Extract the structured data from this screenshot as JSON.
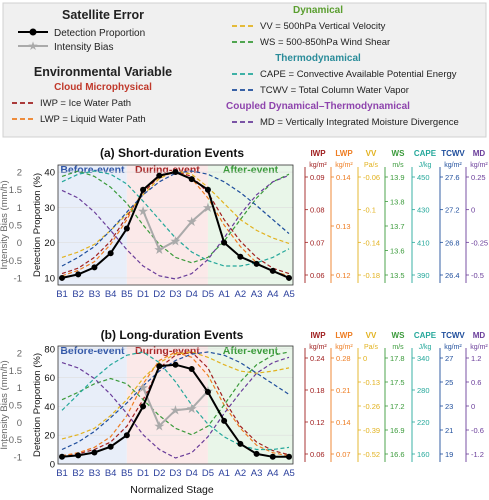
{
  "legend": {
    "satellite_header": "Satellite Error",
    "detection_label": "Detection Proportion",
    "bias_label": "Intensity Bias",
    "env_header": "Environmental Variable",
    "groups": [
      {
        "name": "Cloud Microphysical",
        "color": "#c0392b"
      },
      {
        "name": "Dynamical",
        "color": "#5a9e2f"
      },
      {
        "name": "Thermodynamical",
        "color": "#2a8c9a"
      },
      {
        "name": "Coupled Dynamical–Thermodynamical",
        "color": "#8e44ad"
      }
    ],
    "items": [
      {
        "label": "IWP = Ice Water Path",
        "color": "#a02020"
      },
      {
        "label": "LWP = Liquid Water Path",
        "color": "#ee7d22"
      },
      {
        "label": "VV = 500hPa Vertical Velocity",
        "color": "#e2b21f"
      },
      {
        "label": "WS = 500-850hPa Wind Shear",
        "color": "#3a9a3a"
      },
      {
        "label": "CAPE = Convective Available Potential Energy",
        "color": "#25a89b"
      },
      {
        "label": "TCWV = Total Column Water Vapor",
        "color": "#1f4e9c"
      },
      {
        "label": "MD = Vertically Integrated Moisture Divergence",
        "color": "#6a3d9a"
      }
    ]
  },
  "chart_data": [
    {
      "type": "line",
      "title": "(a) Short-duration Events",
      "xlabel": "",
      "ylabel": "Detection Proportion (%)",
      "y2label": "Intensity Bias (mm/h)",
      "categories": [
        "B1",
        "B2",
        "B3",
        "B4",
        "B5",
        "D1",
        "D2",
        "D3",
        "D4",
        "D5",
        "A1",
        "A2",
        "A3",
        "A4",
        "A5"
      ],
      "phases": [
        {
          "label": "Before-event",
          "from": 0,
          "to": 4,
          "color": "#3358a8",
          "fill": "#e8eef9"
        },
        {
          "label": "During-event",
          "from": 4,
          "to": 9,
          "color": "#a82828",
          "fill": "#fbe9e9"
        },
        {
          "label": "After-event",
          "from": 9,
          "to": 14,
          "color": "#3a9a3a",
          "fill": "#e9f6e9"
        }
      ],
      "ylim": [
        8,
        42
      ],
      "yticks": [
        10,
        20,
        30,
        40
      ],
      "y2lim": [
        -1.2,
        2.2
      ],
      "y2ticks": [
        -1,
        -0.5,
        0,
        0.5,
        1,
        1.5,
        2
      ],
      "detection": [
        10,
        11,
        13,
        17,
        24,
        35,
        39,
        40,
        38,
        35,
        20,
        16,
        14,
        12,
        10
      ],
      "bias_x": [
        "D1",
        "D2",
        "D3",
        "D4",
        "D5"
      ],
      "bias": [
        0.9,
        -0.2,
        0.05,
        0.6,
        1.0
      ],
      "env_axes": [
        {
          "name": "IWP",
          "unit": "kg/m²",
          "color": "#a02020",
          "ticks": [
            "0.09",
            "0.08",
            "0.07",
            "0.06"
          ]
        },
        {
          "name": "LWP",
          "unit": "kg/m²",
          "color": "#ee7d22",
          "ticks": [
            "0.14",
            "0.13",
            "0.12"
          ]
        },
        {
          "name": "VV",
          "unit": "Pa/s",
          "color": "#e2b21f",
          "ticks": [
            "-0.06",
            "-0.1",
            "-0.14",
            "-0.18"
          ]
        },
        {
          "name": "WS",
          "unit": "m/s",
          "color": "#3a9a3a",
          "ticks": [
            "13.9",
            "13.8",
            "13.7",
            "13.6",
            "13.5"
          ]
        },
        {
          "name": "CAPE",
          "unit": "J/kg",
          "color": "#25a89b",
          "ticks": [
            "450",
            "430",
            "410",
            "390"
          ]
        },
        {
          "name": "TCWV",
          "unit": "kg/m²",
          "color": "#1f4e9c",
          "ticks": [
            "27.6",
            "27.2",
            "26.8",
            "26.4"
          ]
        },
        {
          "name": "MD",
          "unit": "kg/m²",
          "color": "#6a3d9a",
          "ticks": [
            "0.25",
            "0",
            "-0.25",
            "-0.5"
          ]
        }
      ],
      "env_series": [
        {
          "name": "IWP",
          "color": "#a02020",
          "values": [
            0.05,
            0.1,
            0.2,
            0.35,
            0.58,
            0.8,
            0.95,
            1.0,
            0.95,
            0.8,
            0.55,
            0.35,
            0.2,
            0.1,
            0.05
          ]
        },
        {
          "name": "LWP",
          "color": "#ee7d22",
          "values": [
            0.03,
            0.08,
            0.16,
            0.32,
            0.55,
            0.82,
            0.95,
            1.0,
            0.93,
            0.75,
            0.5,
            0.3,
            0.15,
            0.07,
            0.03
          ]
        },
        {
          "name": "VV",
          "color": "#e2b21f",
          "values": [
            0.2,
            0.25,
            0.32,
            0.45,
            0.6,
            0.78,
            0.93,
            1.0,
            0.97,
            0.85,
            0.7,
            0.55,
            0.45,
            0.38,
            0.33
          ]
        },
        {
          "name": "WS",
          "color": "#3a9a3a",
          "values": [
            0.95,
            1.0,
            0.95,
            0.85,
            0.7,
            0.5,
            0.32,
            0.2,
            0.15,
            0.2,
            0.35,
            0.55,
            0.75,
            0.9,
            0.97
          ]
        },
        {
          "name": "CAPE",
          "color": "#25a89b",
          "values": [
            0.9,
            0.97,
            1.0,
            0.97,
            0.88,
            0.72,
            0.55,
            0.38,
            0.25,
            0.17,
            0.12,
            0.12,
            0.15,
            0.2,
            0.28
          ]
        },
        {
          "name": "TCWV",
          "color": "#1f4e9c",
          "values": [
            0.12,
            0.2,
            0.3,
            0.45,
            0.62,
            0.78,
            0.9,
            0.98,
            1.0,
            0.97,
            0.9,
            0.8,
            0.68,
            0.55,
            0.42
          ]
        },
        {
          "name": "MD",
          "color": "#6a3d9a",
          "values": [
            0.82,
            0.75,
            0.62,
            0.45,
            0.27,
            0.12,
            0.03,
            0.0,
            0.05,
            0.18,
            0.38,
            0.6,
            0.78,
            0.9,
            0.96
          ]
        }
      ]
    },
    {
      "type": "line",
      "title": "(b) Long-duration Events",
      "xlabel": "Normalized Stage",
      "ylabel": "Detection Proportion (%)",
      "y2label": "Intensity Bias (mm/h)",
      "categories": [
        "B1",
        "B2",
        "B3",
        "B4",
        "B5",
        "D1",
        "D2",
        "D3",
        "D4",
        "D5",
        "A1",
        "A2",
        "A3",
        "A4",
        "A5"
      ],
      "phases": [
        {
          "label": "Before-event",
          "from": 0,
          "to": 4,
          "color": "#3358a8",
          "fill": "#e8eef9"
        },
        {
          "label": "During-event",
          "from": 4,
          "to": 9,
          "color": "#a82828",
          "fill": "#fbe9e9"
        },
        {
          "label": "After-event",
          "from": 9,
          "to": 14,
          "color": "#3a9a3a",
          "fill": "#e9f6e9"
        }
      ],
      "ylim": [
        0,
        82
      ],
      "yticks": [
        0,
        20,
        40,
        60,
        80
      ],
      "y2lim": [
        -1.2,
        2.2
      ],
      "y2ticks": [
        -1,
        -0.5,
        0,
        0.5,
        1,
        1.5,
        2
      ],
      "detection": [
        5,
        6,
        8,
        12,
        20,
        40,
        68,
        69,
        66,
        50,
        30,
        14,
        7,
        5,
        5
      ],
      "bias_x": [
        "D1",
        "D2",
        "D3",
        "D4",
        "D5"
      ],
      "bias": [
        1.0,
        -0.1,
        0.35,
        0.4,
        0.9
      ],
      "env_axes": [
        {
          "name": "IWP",
          "unit": "kg/m²",
          "color": "#a02020",
          "ticks": [
            "0.24",
            "0.18",
            "0.12",
            "0.06"
          ]
        },
        {
          "name": "LWP",
          "unit": "kg/m²",
          "color": "#ee7d22",
          "ticks": [
            "0.28",
            "0.21",
            "0.14",
            "0.07"
          ]
        },
        {
          "name": "VV",
          "unit": "Pa/s",
          "color": "#e2b21f",
          "ticks": [
            "0",
            "-0.13",
            "-0.26",
            "-0.39",
            "-0.52"
          ]
        },
        {
          "name": "WS",
          "unit": "m/s",
          "color": "#3a9a3a",
          "ticks": [
            "17.8",
            "17.5",
            "17.2",
            "16.9",
            "16.6"
          ]
        },
        {
          "name": "CAPE",
          "unit": "J/kg",
          "color": "#25a89b",
          "ticks": [
            "340",
            "280",
            "220",
            "160"
          ]
        },
        {
          "name": "TCWV",
          "unit": "kg/m²",
          "color": "#1f4e9c",
          "ticks": [
            "27",
            "25",
            "23",
            "21",
            "19"
          ]
        },
        {
          "name": "MD",
          "unit": "kg/m²",
          "color": "#6a3d9a",
          "ticks": [
            "1.2",
            "0.6",
            "0",
            "-0.6",
            "-1.2"
          ]
        }
      ],
      "env_series": [
        {
          "name": "IWP",
          "color": "#a02020",
          "values": [
            0.02,
            0.04,
            0.08,
            0.15,
            0.3,
            0.55,
            0.85,
            0.97,
            1.0,
            0.85,
            0.55,
            0.3,
            0.15,
            0.07,
            0.03
          ]
        },
        {
          "name": "LWP",
          "color": "#ee7d22",
          "values": [
            0.02,
            0.05,
            0.1,
            0.2,
            0.4,
            0.7,
            0.92,
            1.0,
            0.95,
            0.78,
            0.5,
            0.28,
            0.12,
            0.05,
            0.02
          ]
        },
        {
          "name": "VV",
          "color": "#e2b21f",
          "values": [
            0.18,
            0.22,
            0.28,
            0.4,
            0.55,
            0.75,
            0.9,
            0.98,
            1.0,
            0.95,
            0.88,
            0.82,
            0.8,
            0.82,
            0.85
          ]
        },
        {
          "name": "WS",
          "color": "#3a9a3a",
          "values": [
            0.55,
            0.62,
            0.7,
            0.75,
            0.7,
            0.55,
            0.4,
            0.28,
            0.22,
            0.3,
            0.5,
            0.72,
            0.88,
            0.97,
            1.0
          ]
        },
        {
          "name": "CAPE",
          "color": "#25a89b",
          "values": [
            0.45,
            0.6,
            0.75,
            0.88,
            0.97,
            1.0,
            0.9,
            0.72,
            0.5,
            0.32,
            0.2,
            0.12,
            0.08,
            0.08,
            0.1
          ]
        },
        {
          "name": "TCWV",
          "color": "#1f4e9c",
          "values": [
            0.08,
            0.15,
            0.25,
            0.38,
            0.52,
            0.68,
            0.82,
            0.92,
            0.98,
            1.0,
            0.97,
            0.9,
            0.8,
            0.7,
            0.6
          ]
        },
        {
          "name": "MD",
          "color": "#6a3d9a",
          "values": [
            0.9,
            0.85,
            0.75,
            0.6,
            0.42,
            0.22,
            0.08,
            0.0,
            0.05,
            0.2,
            0.42,
            0.62,
            0.8,
            0.9,
            0.95
          ]
        }
      ]
    }
  ]
}
